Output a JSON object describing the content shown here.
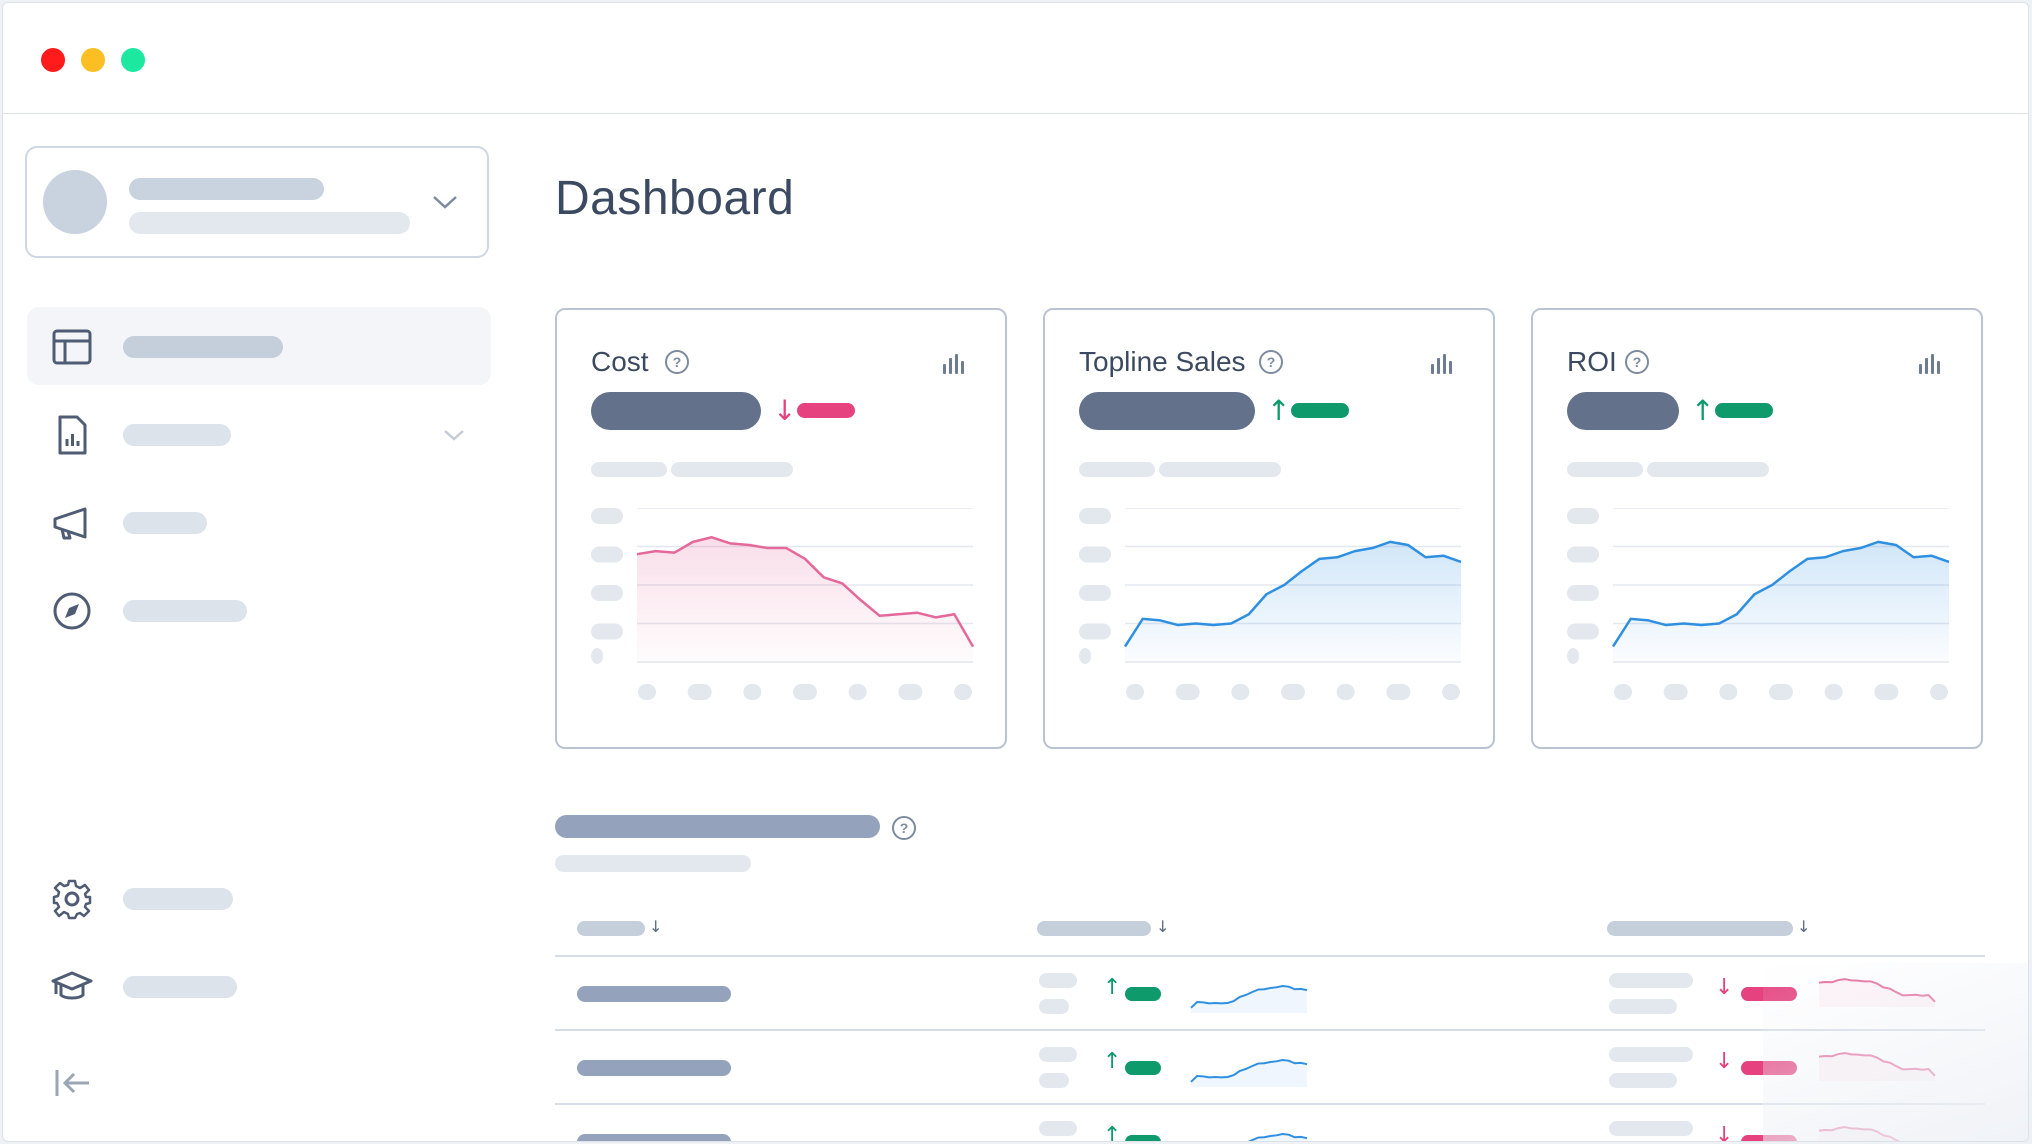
{
  "window": {
    "traffic_lights": [
      "#ff1b1b",
      "#fbbf24",
      "#1ce8a0"
    ]
  },
  "sidebar": {
    "items": [
      {
        "icon": "layout-icon",
        "active": true
      },
      {
        "icon": "report-icon",
        "has_submenu": true
      },
      {
        "icon": "megaphone-icon"
      },
      {
        "icon": "compass-icon"
      },
      {
        "icon": "gear-icon"
      },
      {
        "icon": "graduation-cap-icon"
      }
    ],
    "collapse_icon": "collapse-sidebar-icon"
  },
  "main": {
    "title": "Dashboard",
    "cards": [
      {
        "title": "Cost",
        "trend": "down",
        "color": "#e5427f"
      },
      {
        "title": "Topline Sales",
        "trend": "up",
        "color": "#0e9a6b"
      },
      {
        "title": "ROI",
        "trend": "up",
        "color": "#0e9a6b"
      }
    ],
    "table": {
      "rows": [
        {
          "col2_trend": "up",
          "col3_trend": "down"
        },
        {
          "col2_trend": "up",
          "col3_trend": "down"
        },
        {
          "col2_trend": "up",
          "col3_trend": "down"
        }
      ]
    }
  },
  "colors": {
    "up": "#0e9a6b",
    "down": "#e5427f",
    "line_up": "#2f8fe0",
    "line_down": "#e5689a"
  },
  "chart_data": [
    {
      "type": "area",
      "title": "Cost",
      "values": [
        70,
        72,
        71,
        78,
        81,
        77,
        76,
        74,
        74,
        67,
        55,
        51,
        40,
        30,
        31,
        32,
        29,
        31,
        10
      ]
    },
    {
      "type": "area",
      "title": "Topline Sales",
      "values": [
        10,
        28,
        27,
        24,
        25,
        24,
        25,
        31,
        44,
        50,
        59,
        67,
        68,
        72,
        74,
        78,
        76,
        68,
        69,
        65
      ]
    },
    {
      "type": "area",
      "title": "ROI",
      "values": [
        10,
        28,
        27,
        24,
        25,
        24,
        25,
        31,
        44,
        50,
        59,
        67,
        68,
        72,
        74,
        78,
        76,
        68,
        69,
        65
      ]
    }
  ]
}
